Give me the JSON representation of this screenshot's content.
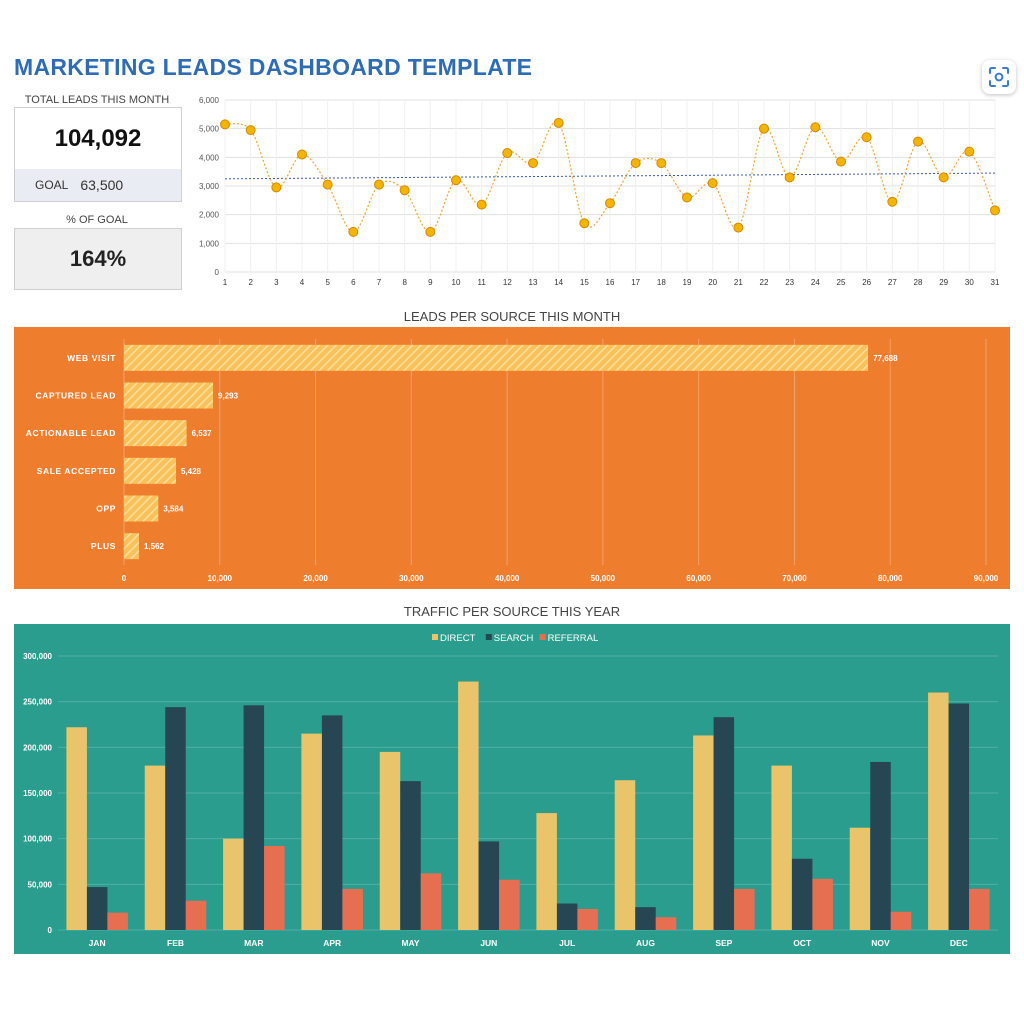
{
  "header": {
    "title": "MARKETING LEADS DASHBOARD TEMPLATE",
    "scan_icon": "scan-icon"
  },
  "kpis": {
    "total_label": "TOTAL LEADS THIS MONTH",
    "total_value": "104,092",
    "goal_label": "GOAL",
    "goal_value": "63,500",
    "pct_label": "% OF GOAL",
    "pct_value": "164%"
  },
  "colors": {
    "orange_panel": "#ef7d2e",
    "teal_panel": "#2a9d8f",
    "direct": "#e9c46a",
    "search": "#264653",
    "referral": "#e76f51",
    "line_point": "#f4b400",
    "trend": "#3b5ba5"
  },
  "chart_data": [
    {
      "type": "line",
      "title": "",
      "x": [
        1,
        2,
        3,
        4,
        5,
        6,
        7,
        8,
        9,
        10,
        11,
        12,
        13,
        14,
        15,
        16,
        17,
        18,
        19,
        20,
        21,
        22,
        23,
        24,
        25,
        26,
        27,
        28,
        29,
        30,
        31
      ],
      "values": [
        5150,
        4950,
        2950,
        4100,
        3050,
        1400,
        3050,
        2850,
        1400,
        3200,
        2350,
        4150,
        3800,
        5200,
        1700,
        2400,
        3800,
        3800,
        2600,
        3100,
        1550,
        5000,
        3300,
        5050,
        3850,
        4700,
        2450,
        4550,
        3300,
        4200,
        2150
      ],
      "ylim": [
        0,
        6000
      ],
      "yticks": [
        "0",
        "1,000",
        "2,000",
        "3,000",
        "4,000",
        "5,000",
        "6,000"
      ],
      "trendline": [
        3250,
        3450
      ],
      "grid": true
    },
    {
      "type": "bar",
      "orientation": "horizontal",
      "title": "LEADS PER SOURCE THIS MONTH",
      "categories": [
        "WEB VISIT",
        "CAPTURED LEAD",
        "ACTIONABLE LEAD",
        "SALE ACCEPTED",
        "OPP",
        "PLUS"
      ],
      "values": [
        77688,
        9293,
        6537,
        5428,
        3584,
        1562
      ],
      "value_labels": [
        "77,688",
        "9,293",
        "6,537",
        "5,428",
        "3,584",
        "1,562"
      ],
      "xlim": [
        0,
        90000
      ],
      "xticks": [
        "0",
        "10,000",
        "20,000",
        "30,000",
        "40,000",
        "50,000",
        "60,000",
        "70,000",
        "80,000",
        "90,000"
      ],
      "grid": true
    },
    {
      "type": "bar",
      "title": "TRAFFIC PER SOURCE THIS YEAR",
      "categories": [
        "JAN",
        "FEB",
        "MAR",
        "APR",
        "MAY",
        "JUN",
        "JUL",
        "AUG",
        "SEP",
        "OCT",
        "NOV",
        "DEC"
      ],
      "series": [
        {
          "name": "DIRECT",
          "values": [
            222000,
            180000,
            100000,
            215000,
            195000,
            272000,
            128000,
            164000,
            213000,
            180000,
            112000,
            260000
          ]
        },
        {
          "name": "SEARCH",
          "values": [
            47000,
            244000,
            246000,
            235000,
            163000,
            97000,
            29000,
            25000,
            233000,
            78000,
            184000,
            248000
          ]
        },
        {
          "name": "REFERRAL",
          "values": [
            19000,
            32000,
            92000,
            45000,
            62000,
            55000,
            23000,
            14000,
            45000,
            56000,
            20000,
            45000
          ]
        }
      ],
      "ylim": [
        0,
        300000
      ],
      "yticks": [
        "0",
        "50,000",
        "100,000",
        "150,000",
        "200,000",
        "250,000",
        "300,000"
      ],
      "legend": "top-center",
      "grid": true
    }
  ]
}
